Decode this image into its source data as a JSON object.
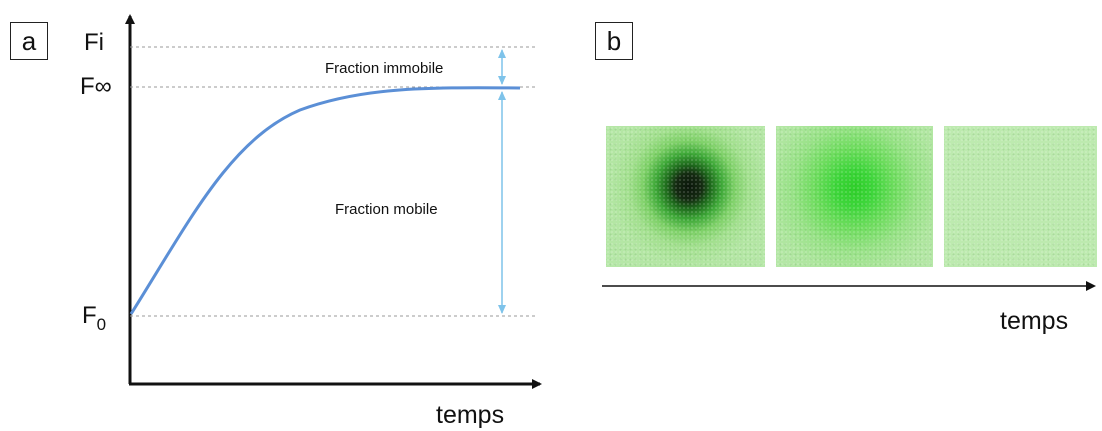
{
  "panel_a": {
    "label": "a",
    "y_axis_label": "Fi",
    "x_axis_label": "temps",
    "f_inf_label": "F∞",
    "f0_label_main": "F",
    "f0_label_sub": "0",
    "immobile_label": "Fraction immobile",
    "mobile_label": "Fraction mobile",
    "curve_color": "#5b8fd6",
    "arrow_color": "#7ec3ea",
    "guide_color": "#999999"
  },
  "panel_b": {
    "label": "b",
    "x_axis_label": "temps",
    "frames": [
      {
        "description_name": "bleached-spot-initial",
        "spot_intensity": 1.0
      },
      {
        "description_name": "bleached-spot-recovering",
        "spot_intensity": 0.4
      },
      {
        "description_name": "bleached-spot-recovered",
        "spot_intensity": 0.0
      }
    ],
    "image_color": "#b8e8aa"
  }
}
